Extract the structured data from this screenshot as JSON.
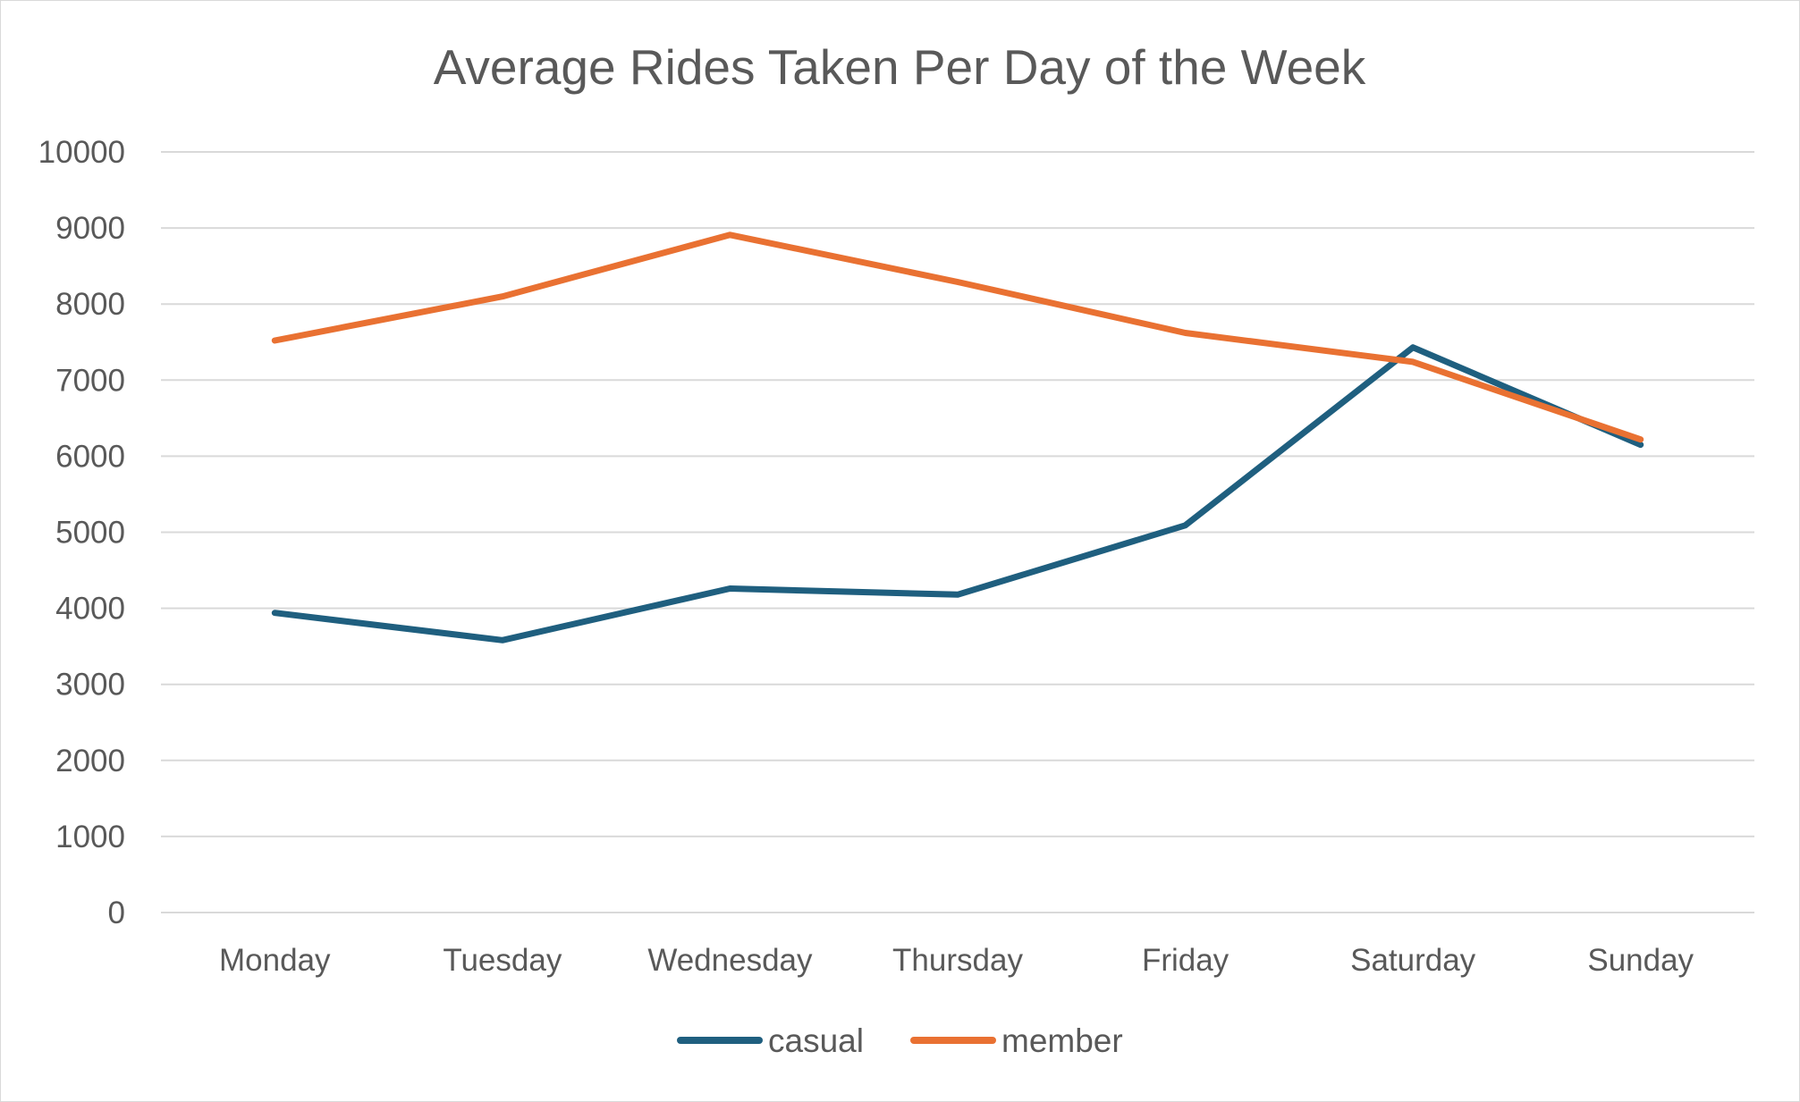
{
  "chart_data": {
    "type": "line",
    "title": "Average Rides Taken Per Day of the Week",
    "xlabel": "",
    "ylabel": "",
    "categories": [
      "Monday",
      "Tuesday",
      "Wednesday",
      "Thursday",
      "Friday",
      "Saturday",
      "Sunday"
    ],
    "ylim": [
      0,
      10000
    ],
    "yticks": [
      0,
      1000,
      2000,
      3000,
      4000,
      5000,
      6000,
      7000,
      8000,
      9000,
      10000
    ],
    "grid": true,
    "legend_position": "bottom",
    "series": [
      {
        "name": "casual",
        "color": "#1f5f7f",
        "values": [
          3940,
          3580,
          4260,
          4180,
          5090,
          7430,
          6150
        ]
      },
      {
        "name": "member",
        "color": "#e97132",
        "values": [
          7520,
          8100,
          8910,
          8290,
          7620,
          7240,
          6220
        ]
      }
    ]
  }
}
